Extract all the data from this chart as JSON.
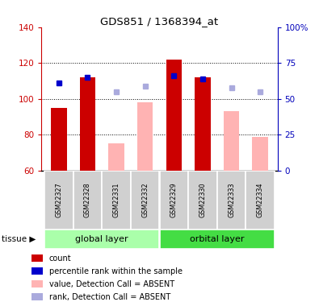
{
  "title": "GDS851 / 1368394_at",
  "samples": [
    "GSM22327",
    "GSM22328",
    "GSM22331",
    "GSM22332",
    "GSM22329",
    "GSM22330",
    "GSM22333",
    "GSM22334"
  ],
  "red_bars": [
    95,
    112,
    null,
    null,
    122,
    112,
    null,
    null
  ],
  "pink_bars": [
    null,
    null,
    75,
    98,
    null,
    null,
    93,
    79
  ],
  "blue_squares": [
    109,
    112,
    null,
    null,
    113,
    111,
    null,
    null
  ],
  "light_blue_squares": [
    null,
    null,
    104,
    107,
    null,
    null,
    106,
    104
  ],
  "ylim_left": [
    60,
    140
  ],
  "ylim_right": [
    0,
    100
  ],
  "yticks_left": [
    60,
    80,
    100,
    120,
    140
  ],
  "yticks_right": [
    0,
    25,
    50,
    75,
    100
  ],
  "ytick_labels_right": [
    "0",
    "25",
    "50",
    "75",
    "100%"
  ],
  "bar_width": 0.55,
  "red_color": "#CC0000",
  "pink_color": "#FFB3B3",
  "blue_color": "#0000CC",
  "light_blue_color": "#AAAADD",
  "left_tick_color": "#CC0000",
  "right_tick_color": "#0000BB",
  "gray_cell_color": "#D0D0D0",
  "green_color_light": "#AAFFAA",
  "green_color_dark": "#44DD44",
  "legend_items": [
    {
      "label": "count",
      "color": "#CC0000"
    },
    {
      "label": "percentile rank within the sample",
      "color": "#0000CC"
    },
    {
      "label": "value, Detection Call = ABSENT",
      "color": "#FFB3B3"
    },
    {
      "label": "rank, Detection Call = ABSENT",
      "color": "#AAAADD"
    }
  ],
  "group_divider_after": 3,
  "global_layer_label": "global layer",
  "orbital_layer_label": "orbital layer",
  "tissue_label": "tissue"
}
